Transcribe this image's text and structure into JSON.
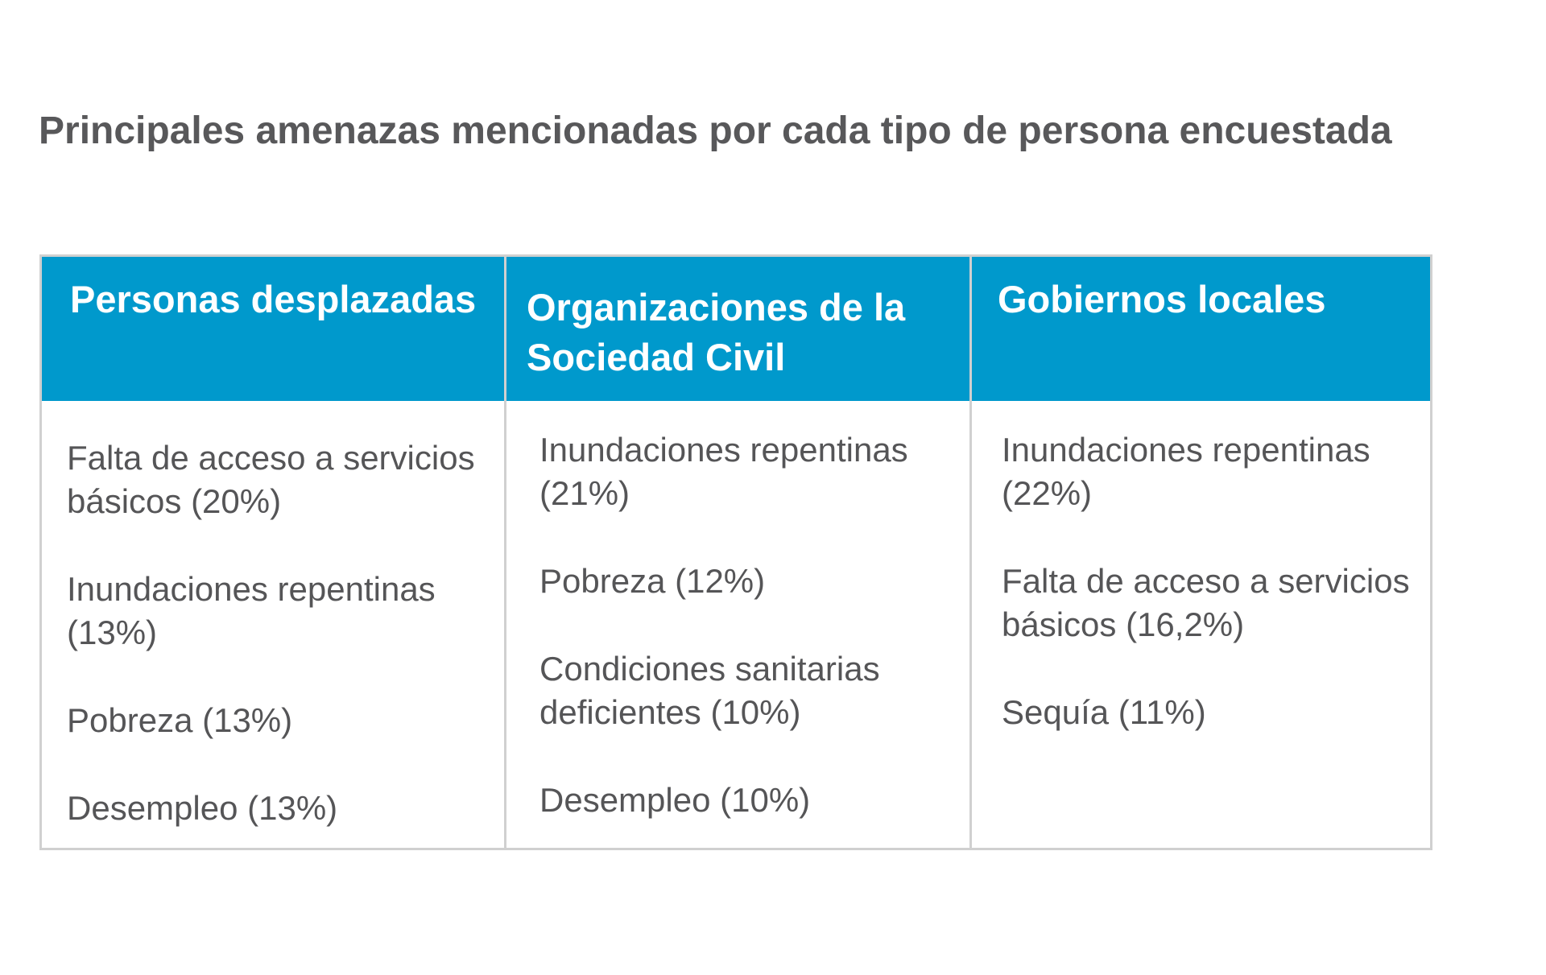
{
  "title": "Principales amenazas mencionadas por cada tipo de persona encuestada",
  "columns": [
    {
      "header": "Personas desplazadas",
      "items": [
        "Falta de acceso a servicios básicos (20%)",
        "Inundaciones repentinas (13%)",
        "Pobreza (13%)",
        "Desempleo (13%)"
      ]
    },
    {
      "header": "Organizaciones de la Sociedad Civil",
      "items": [
        "Inundaciones repentinas (21%)",
        "Pobreza (12%)",
        "Condiciones sanitarias deficientes (10%)",
        "Desempleo (10%)"
      ]
    },
    {
      "header": "Gobiernos locales",
      "items": [
        "Inundaciones repentinas (22%)",
        "Falta de acceso a servicios básicos (16,2%)",
        "Sequía (11%)"
      ]
    }
  ],
  "colors": {
    "header_bg": "#0099cc",
    "header_text": "#ffffff",
    "body_text": "#555557",
    "border": "#d0d0d0"
  }
}
